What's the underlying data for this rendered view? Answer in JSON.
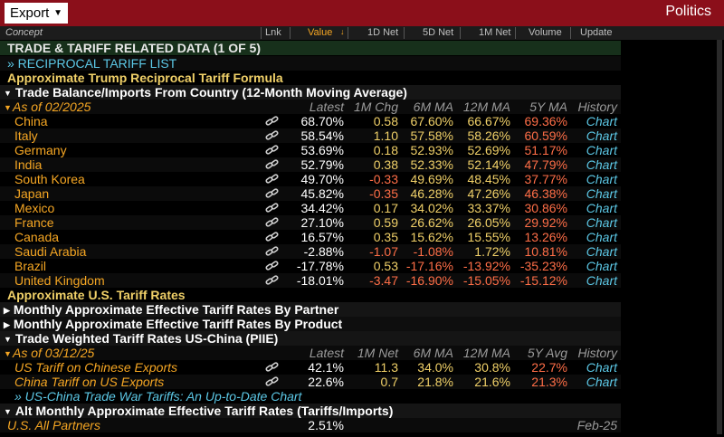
{
  "toolbar": {
    "export_label": "Export",
    "right_label": "Politics"
  },
  "columns": [
    "Concept",
    "Lnk",
    "Value",
    "1D Net",
    "5D Net",
    "1M Net",
    "Volume",
    "Update"
  ],
  "title_bar": "TRADE & TARIFF RELATED DATA (1 OF 5)",
  "sub_link": "» RECIPROCAL TARIFF LIST",
  "sections": {
    "formula": "Approximate Trump Reciprocal Tariff Formula",
    "balance": "Trade Balance/Imports From Country (12-Month Moving Average)",
    "us_rates": "Approximate U.S. Tariff Rates",
    "by_partner": "Monthly Approximate Effective Tariff Rates By Partner",
    "by_product": "Monthly Approximate Effective Tariff Rates By Product",
    "weighted": "Trade Weighted Tariff Rates US-China (PIIE)",
    "alt": "Alt Monthly Approximate Effective Tariff Rates (Tariffs/Imports)"
  },
  "balance_header": {
    "asof": "As of 02/2025",
    "c1": "Latest",
    "c2": "1M Chg",
    "c3": "6M MA",
    "c4": "12M MA",
    "c5": "5Y MA",
    "c6": "History"
  },
  "balance_rows": [
    {
      "name": "China",
      "latest": "68.70%",
      "chg": "0.58",
      "m6": "67.60%",
      "m12": "66.67%",
      "y5": "69.36%",
      "hist": "Chart"
    },
    {
      "name": "Italy",
      "latest": "58.54%",
      "chg": "1.10",
      "m6": "57.58%",
      "m12": "58.26%",
      "y5": "60.59%",
      "hist": "Chart"
    },
    {
      "name": "Germany",
      "latest": "53.69%",
      "chg": "0.18",
      "m6": "52.93%",
      "m12": "52.69%",
      "y5": "51.17%",
      "hist": "Chart"
    },
    {
      "name": "India",
      "latest": "52.79%",
      "chg": "0.38",
      "m6": "52.33%",
      "m12": "52.14%",
      "y5": "47.79%",
      "hist": "Chart"
    },
    {
      "name": "South Korea",
      "latest": "49.70%",
      "chg": "-0.33",
      "m6": "49.69%",
      "m12": "48.45%",
      "y5": "37.77%",
      "hist": "Chart"
    },
    {
      "name": "Japan",
      "latest": "45.82%",
      "chg": "-0.35",
      "m6": "46.28%",
      "m12": "47.26%",
      "y5": "46.38%",
      "hist": "Chart"
    },
    {
      "name": "Mexico",
      "latest": "34.42%",
      "chg": "0.17",
      "m6": "34.02%",
      "m12": "33.37%",
      "y5": "30.86%",
      "hist": "Chart"
    },
    {
      "name": "France",
      "latest": "27.10%",
      "chg": "0.59",
      "m6": "26.62%",
      "m12": "26.05%",
      "y5": "29.92%",
      "hist": "Chart"
    },
    {
      "name": "Canada",
      "latest": "16.57%",
      "chg": "0.35",
      "m6": "15.62%",
      "m12": "15.55%",
      "y5": "13.26%",
      "hist": "Chart"
    },
    {
      "name": "Saudi Arabia",
      "latest": "-2.88%",
      "chg": "-1.07",
      "m6": "-1.08%",
      "m12": "1.72%",
      "y5": "10.81%",
      "hist": "Chart"
    },
    {
      "name": "Brazil",
      "latest": "-17.78%",
      "chg": "0.53",
      "m6": "-17.16%",
      "m12": "-13.92%",
      "y5": "-35.23%",
      "hist": "Chart"
    },
    {
      "name": "United Kingdom",
      "latest": "-18.01%",
      "chg": "-3.47",
      "m6": "-16.90%",
      "m12": "-15.05%",
      "y5": "-15.12%",
      "hist": "Chart"
    }
  ],
  "weighted_header": {
    "asof": "As of 03/12/25",
    "c1": "Latest",
    "c2": "1M Net",
    "c3": "6M MA",
    "c4": "12M MA",
    "c5": "5Y Avg",
    "c6": "History"
  },
  "weighted_rows": [
    {
      "name": "US Tariff on Chinese Exports",
      "latest": "42.1%",
      "chg": "11.3",
      "m6": "34.0%",
      "m12": "30.8%",
      "y5": "22.7%",
      "hist": "Chart"
    },
    {
      "name": "China Tariff on US Exports",
      "latest": "22.6%",
      "chg": "0.7",
      "m6": "21.8%",
      "m12": "21.6%",
      "y5": "21.3%",
      "hist": "Chart"
    }
  ],
  "trade_war_link": "» US-China Trade War Tariffs: An Up-to-Date Chart",
  "alt_row": {
    "name": "U.S. All Partners",
    "latest": "2.51%",
    "date": "Feb-25"
  }
}
